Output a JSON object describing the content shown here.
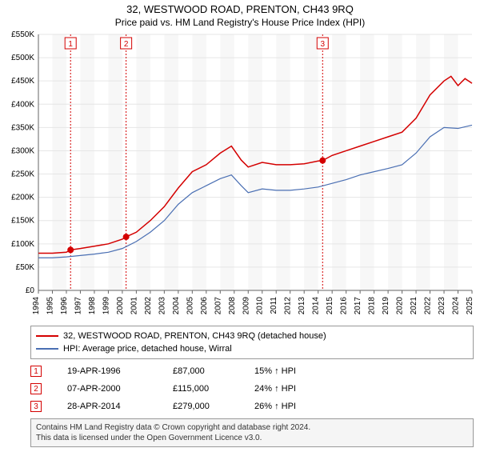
{
  "title": "32, WESTWOOD ROAD, PRENTON, CH43 9RQ",
  "subtitle": "Price paid vs. HM Land Registry's House Price Index (HPI)",
  "chart": {
    "type": "line",
    "background_color": "#ffffff",
    "plotband_color": "#f7f7f7",
    "grid_color": "#e6e6e6",
    "axis_color": "#666666",
    "tick_font_size": 10,
    "x": {
      "min": 1994,
      "max": 2025,
      "ticks": [
        1994,
        1995,
        1996,
        1997,
        1998,
        1999,
        2000,
        2001,
        2002,
        2003,
        2004,
        2005,
        2006,
        2007,
        2008,
        2009,
        2010,
        2011,
        2012,
        2013,
        2014,
        2015,
        2016,
        2017,
        2018,
        2019,
        2020,
        2021,
        2022,
        2023,
        2024,
        2025
      ],
      "label_rotation": -90
    },
    "y": {
      "min": 0,
      "max": 550000,
      "ticks": [
        0,
        50000,
        100000,
        150000,
        200000,
        250000,
        300000,
        350000,
        400000,
        450000,
        500000,
        550000
      ],
      "tick_labels": [
        "£0",
        "£50K",
        "£100K",
        "£150K",
        "£200K",
        "£250K",
        "£300K",
        "£350K",
        "£400K",
        "£450K",
        "£500K",
        "£550K"
      ]
    },
    "series": [
      {
        "id": "price_paid",
        "label": "32, WESTWOOD ROAD, PRENTON, CH43 9RQ (detached house)",
        "color": "#d40000",
        "line_width": 1.5,
        "points": [
          [
            1994.0,
            80000
          ],
          [
            1995.0,
            80000
          ],
          [
            1996.0,
            82000
          ],
          [
            1996.3,
            87000
          ],
          [
            1997.0,
            90000
          ],
          [
            1998.0,
            95000
          ],
          [
            1999.0,
            100000
          ],
          [
            2000.0,
            110000
          ],
          [
            2000.27,
            115000
          ],
          [
            2001.0,
            125000
          ],
          [
            2002.0,
            150000
          ],
          [
            2003.0,
            180000
          ],
          [
            2004.0,
            220000
          ],
          [
            2005.0,
            255000
          ],
          [
            2006.0,
            270000
          ],
          [
            2007.0,
            295000
          ],
          [
            2007.8,
            310000
          ],
          [
            2008.5,
            280000
          ],
          [
            2009.0,
            265000
          ],
          [
            2010.0,
            275000
          ],
          [
            2011.0,
            270000
          ],
          [
            2012.0,
            270000
          ],
          [
            2013.0,
            272000
          ],
          [
            2014.0,
            278000
          ],
          [
            2014.32,
            279000
          ],
          [
            2015.0,
            290000
          ],
          [
            2016.0,
            300000
          ],
          [
            2017.0,
            310000
          ],
          [
            2018.0,
            320000
          ],
          [
            2019.0,
            330000
          ],
          [
            2020.0,
            340000
          ],
          [
            2021.0,
            370000
          ],
          [
            2022.0,
            420000
          ],
          [
            2023.0,
            450000
          ],
          [
            2023.5,
            460000
          ],
          [
            2024.0,
            440000
          ],
          [
            2024.5,
            455000
          ],
          [
            2025.0,
            445000
          ]
        ]
      },
      {
        "id": "hpi",
        "label": "HPI: Average price, detached house, Wirral",
        "color": "#4a6fb3",
        "line_width": 1.2,
        "points": [
          [
            1994.0,
            70000
          ],
          [
            1995.0,
            70000
          ],
          [
            1996.0,
            72000
          ],
          [
            1997.0,
            75000
          ],
          [
            1998.0,
            78000
          ],
          [
            1999.0,
            82000
          ],
          [
            2000.0,
            90000
          ],
          [
            2001.0,
            105000
          ],
          [
            2002.0,
            125000
          ],
          [
            2003.0,
            150000
          ],
          [
            2004.0,
            185000
          ],
          [
            2005.0,
            210000
          ],
          [
            2006.0,
            225000
          ],
          [
            2007.0,
            240000
          ],
          [
            2007.8,
            248000
          ],
          [
            2008.5,
            225000
          ],
          [
            2009.0,
            210000
          ],
          [
            2010.0,
            218000
          ],
          [
            2011.0,
            215000
          ],
          [
            2012.0,
            215000
          ],
          [
            2013.0,
            218000
          ],
          [
            2014.0,
            222000
          ],
          [
            2015.0,
            230000
          ],
          [
            2016.0,
            238000
          ],
          [
            2017.0,
            248000
          ],
          [
            2018.0,
            255000
          ],
          [
            2019.0,
            262000
          ],
          [
            2020.0,
            270000
          ],
          [
            2021.0,
            295000
          ],
          [
            2022.0,
            330000
          ],
          [
            2023.0,
            350000
          ],
          [
            2024.0,
            348000
          ],
          [
            2025.0,
            355000
          ]
        ]
      }
    ],
    "event_markers": [
      {
        "n": "1",
        "x": 1996.3,
        "y": 87000,
        "date": "19-APR-1996",
        "price": "£87,000",
        "diff": "15% ↑ HPI"
      },
      {
        "n": "2",
        "x": 2000.27,
        "y": 115000,
        "date": "07-APR-2000",
        "price": "£115,000",
        "diff": "24% ↑ HPI"
      },
      {
        "n": "3",
        "x": 2014.32,
        "y": 279000,
        "date": "28-APR-2014",
        "price": "£279,000",
        "diff": "26% ↑ HPI"
      }
    ],
    "marker_line_color": "#d40000",
    "marker_box_color": "#d40000",
    "marker_dot_color": "#d40000"
  },
  "legend": {
    "series0": "32, WESTWOOD ROAD, PRENTON, CH43 9RQ (detached house)",
    "series1": "HPI: Average price, detached house, Wirral"
  },
  "footer": {
    "line1": "Contains HM Land Registry data © Crown copyright and database right 2024.",
    "line2": "This data is licensed under the Open Government Licence v3.0."
  }
}
